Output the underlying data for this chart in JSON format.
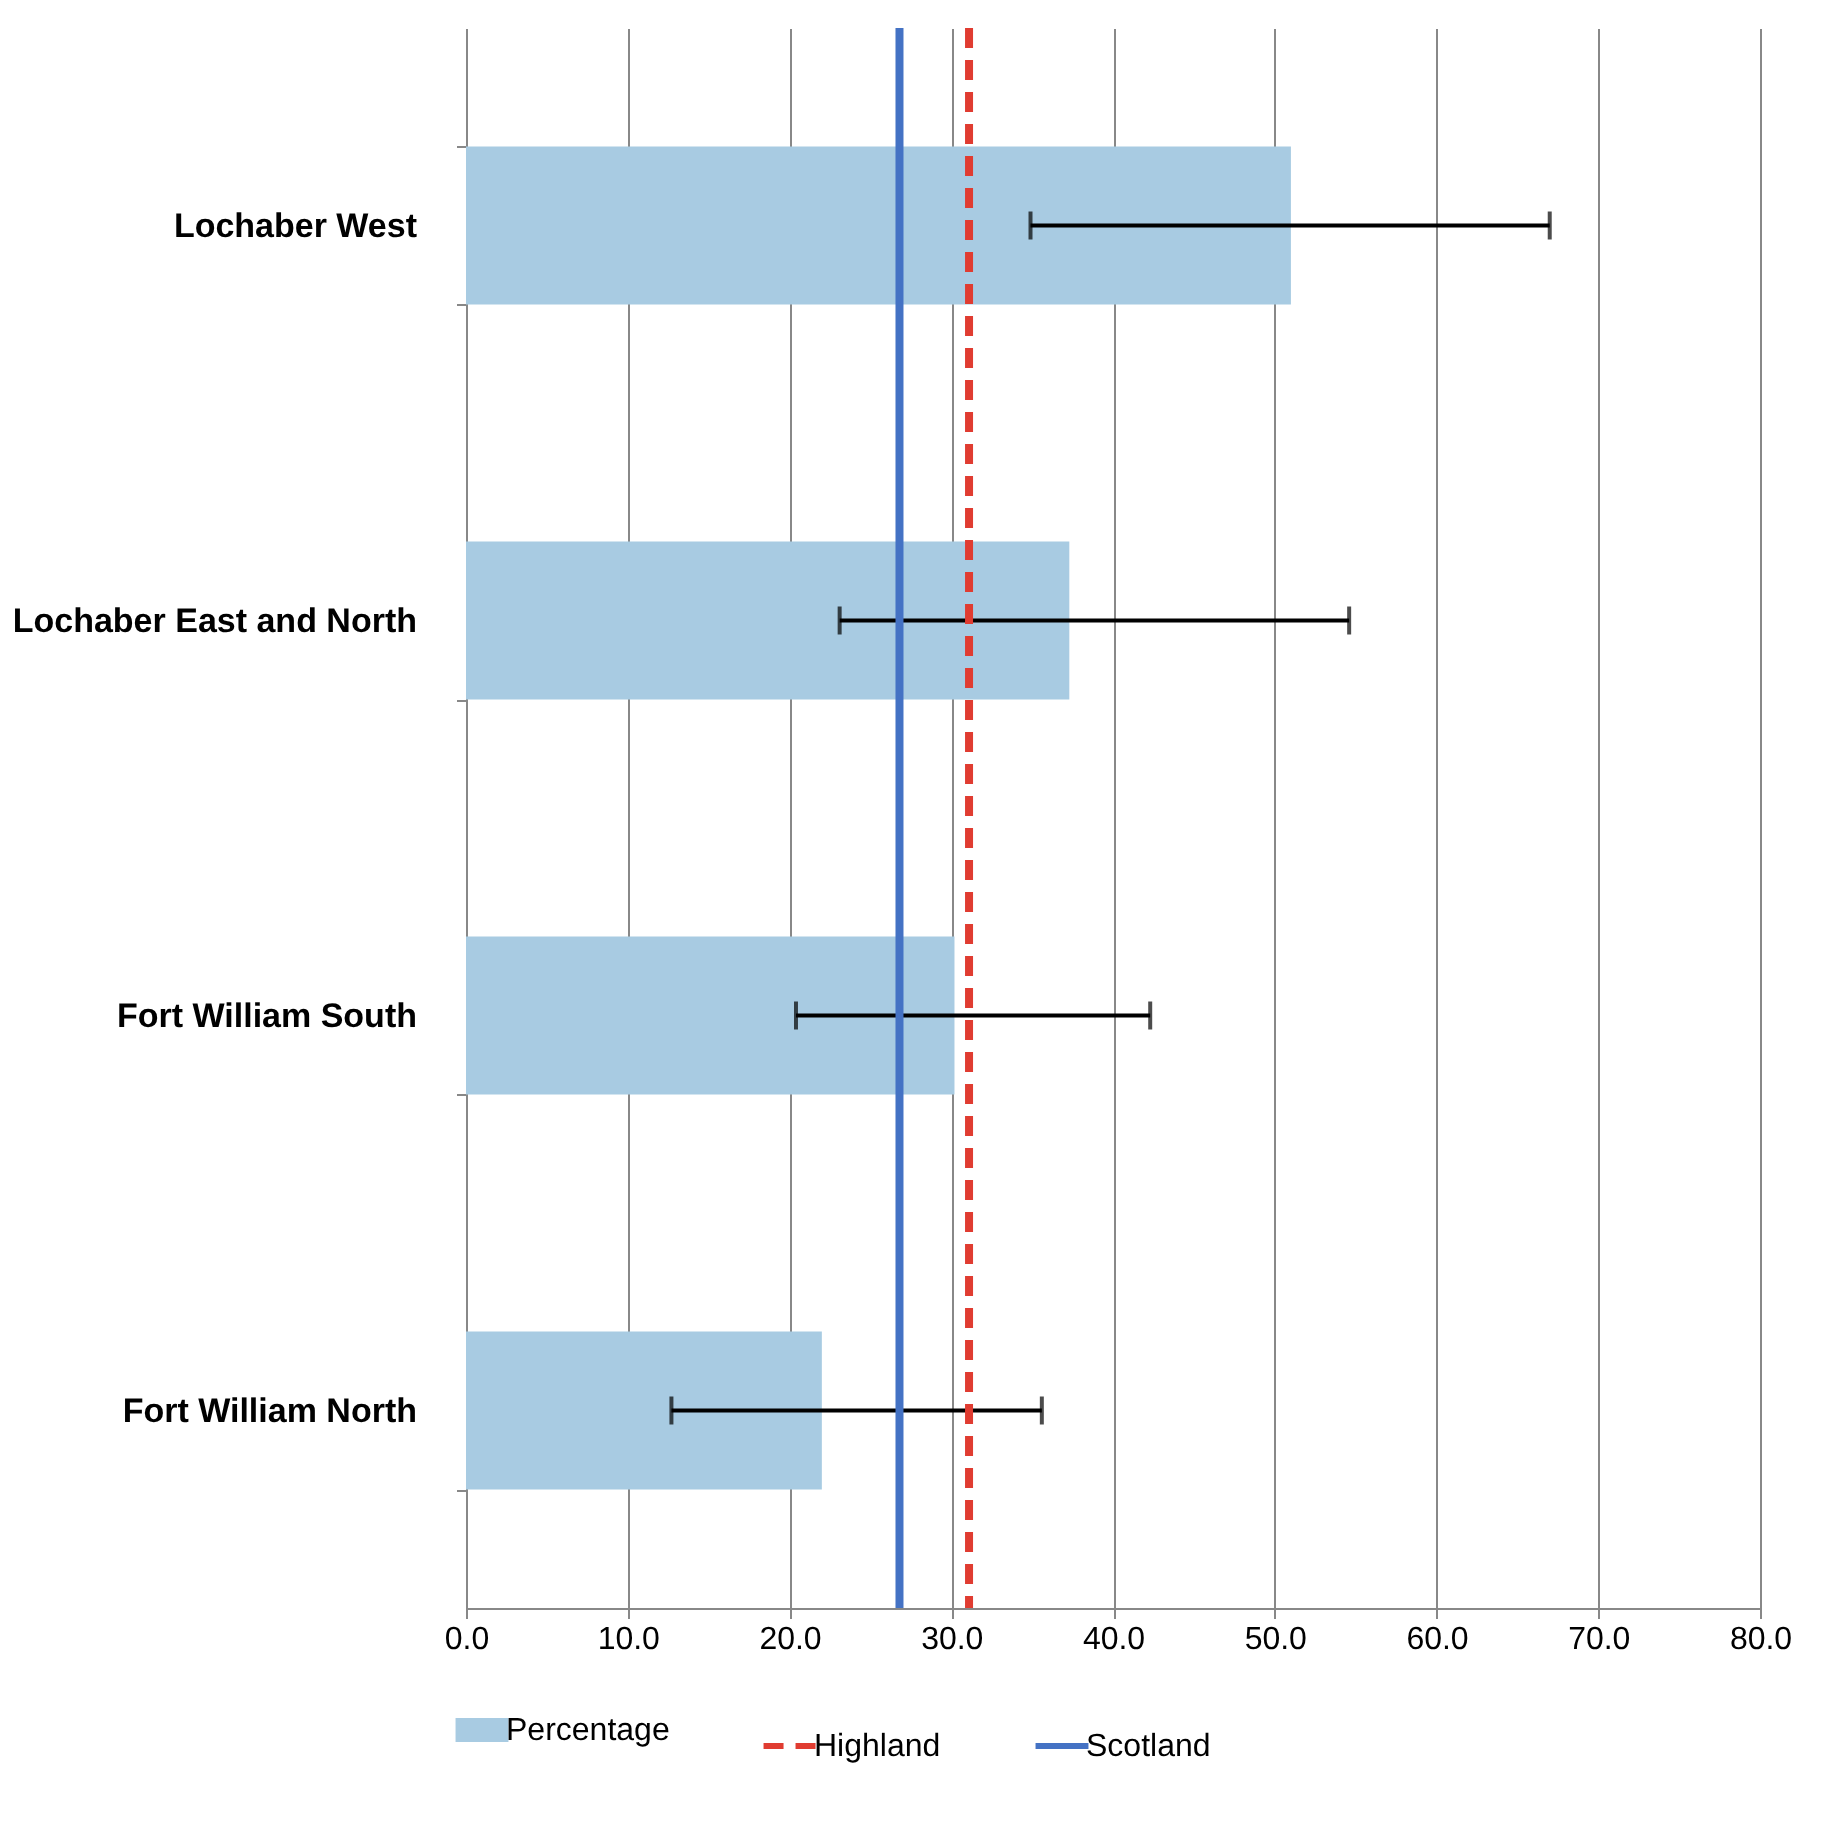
{
  "chart_data": {
    "type": "bar",
    "orientation": "horizontal",
    "categories": [
      "Lochaber West",
      "Lochaber East and North",
      "Fort William South",
      "Fort William North"
    ],
    "series": [
      {
        "name": "Percentage",
        "color": "#a8cbe2",
        "values": [
          51.0,
          37.3,
          30.2,
          22.0
        ],
        "errors": [
          [
            34.9,
            67.0
          ],
          [
            23.1,
            54.6
          ],
          [
            20.4,
            42.3
          ],
          [
            12.7,
            35.6
          ]
        ]
      }
    ],
    "ref_lines": [
      {
        "axis": "x",
        "value": 31.1,
        "label": "Highland",
        "color": "#e03c31",
        "line_style": "dashed"
      },
      {
        "axis": "x",
        "value": 26.8,
        "label": "Scotland",
        "color": "#4472c4",
        "line_style": "solid"
      }
    ],
    "xlim": [
      0,
      80
    ],
    "xticks": [
      {
        "value": 0,
        "label": "0.0"
      },
      {
        "value": 10,
        "label": "10.0"
      },
      {
        "value": 20,
        "label": "20.0"
      },
      {
        "value": 30,
        "label": "30.0"
      },
      {
        "value": 40,
        "label": "40.0"
      },
      {
        "value": 50,
        "label": "50.0"
      },
      {
        "value": 60,
        "label": "60.0"
      },
      {
        "value": 70,
        "label": "70.0"
      },
      {
        "value": 80,
        "label": "80.0"
      }
    ],
    "grid": "x",
    "legend": "bottom"
  }
}
